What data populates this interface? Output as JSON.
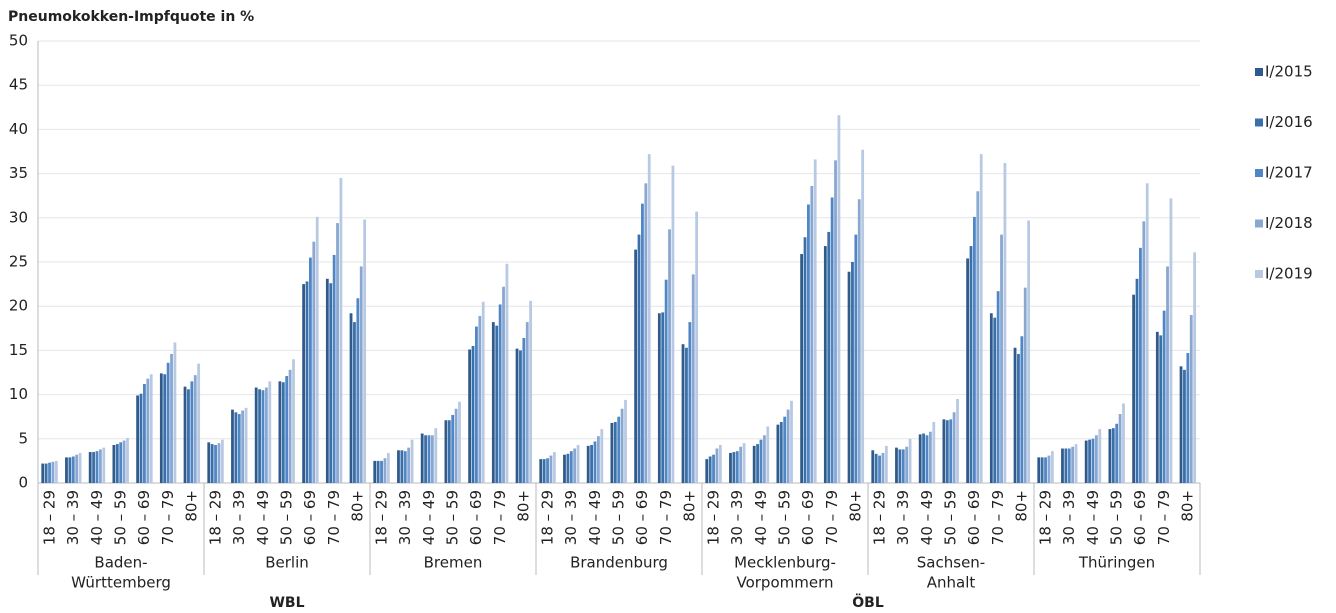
{
  "chart_data": {
    "type": "bar",
    "title": "Pneumokokken-Impfquote in %",
    "ylim": [
      0,
      50
    ],
    "yticks": [
      0,
      5,
      10,
      15,
      20,
      25,
      30,
      35,
      40,
      45,
      50
    ],
    "grid": true,
    "legend": "right",
    "categories": [
      "18 – 29",
      "30 – 39",
      "40 – 49",
      "50 – 59",
      "60 – 69",
      "70 – 79",
      "80+",
      "18 – 29",
      "30 – 39",
      "40 – 49",
      "50 – 59",
      "60 – 69",
      "70 – 79",
      "80+",
      "18 – 29",
      "30 – 39",
      "40 – 49",
      "50 – 59",
      "60 – 69",
      "70 – 79",
      "80+",
      "18 – 29",
      "30 – 39",
      "40 – 49",
      "50 – 59",
      "60 – 69",
      "70 – 79",
      "80+",
      "18 – 29",
      "30 – 39",
      "40 – 49",
      "50 – 59",
      "60 – 69",
      "70 – 79",
      "80+",
      "18 – 29",
      "30 – 39",
      "40 – 49",
      "50 – 59",
      "60 – 69",
      "70 – 79",
      "80+",
      "18 – 29",
      "30 – 39",
      "40 – 49",
      "50 – 59",
      "60 – 69",
      "70 – 79",
      "80+"
    ],
    "groups": [
      [
        "Baden-",
        "Württemberg"
      ],
      [
        "Berlin"
      ],
      [
        "Bremen"
      ],
      [
        "Brandenburg"
      ],
      [
        "Mecklenburg-",
        "Vorpommern"
      ],
      [
        "Sachsen-",
        "Anhalt"
      ],
      [
        "Thüringen"
      ]
    ],
    "regions": [
      "WBL",
      "ÖBL"
    ],
    "series": [
      {
        "name": "I/2015",
        "color": "#2f5b8c",
        "values": [
          2.2,
          2.9,
          3.5,
          4.3,
          9.9,
          12.4,
          10.9,
          4.6,
          8.3,
          10.8,
          11.5,
          22.5,
          23.1,
          19.2,
          2.5,
          3.7,
          5.6,
          7.1,
          15.1,
          18.2,
          15.2,
          2.7,
          3.2,
          4.2,
          6.8,
          26.4,
          19.2,
          15.7,
          2.7,
          3.4,
          4.2,
          6.6,
          25.9,
          26.8,
          23.9,
          3.7,
          4.0,
          5.5,
          7.2,
          25.4,
          19.2,
          15.3,
          2.9,
          3.9,
          4.8,
          6.1,
          21.3,
          17.1,
          13.2
        ]
      },
      {
        "name": "I/2016",
        "color": "#3b6fa8",
        "values": [
          2.2,
          2.9,
          3.5,
          4.4,
          10.1,
          12.3,
          10.6,
          4.4,
          8.0,
          10.6,
          11.4,
          22.8,
          22.6,
          18.2,
          2.5,
          3.7,
          5.4,
          7.1,
          15.5,
          17.8,
          15.0,
          2.7,
          3.3,
          4.3,
          6.9,
          28.1,
          19.3,
          15.3,
          3.0,
          3.5,
          4.4,
          6.9,
          27.8,
          28.4,
          25.0,
          3.3,
          3.8,
          5.6,
          7.1,
          26.8,
          18.7,
          14.6,
          2.9,
          3.9,
          4.9,
          6.2,
          23.1,
          16.7,
          12.8
        ]
      },
      {
        "name": "I/2017",
        "color": "#4f86c6",
        "values": [
          2.3,
          3.0,
          3.6,
          4.6,
          11.2,
          13.6,
          11.5,
          4.3,
          7.8,
          10.5,
          12.1,
          25.5,
          25.8,
          20.9,
          2.5,
          3.6,
          5.4,
          7.7,
          17.7,
          20.2,
          16.4,
          2.8,
          3.6,
          4.7,
          7.5,
          31.6,
          23.0,
          18.2,
          3.2,
          3.6,
          4.9,
          7.5,
          31.5,
          32.3,
          28.1,
          3.1,
          3.8,
          5.4,
          7.2,
          30.1,
          21.7,
          16.6,
          2.9,
          3.9,
          5.0,
          6.7,
          26.6,
          19.5,
          14.7
        ]
      },
      {
        "name": "I/2018",
        "color": "#89a7d0",
        "values": [
          2.4,
          3.2,
          3.8,
          4.8,
          11.8,
          14.6,
          12.2,
          4.5,
          8.2,
          10.8,
          12.8,
          27.3,
          29.4,
          24.5,
          2.8,
          4.0,
          5.4,
          8.4,
          18.9,
          22.2,
          18.2,
          3.1,
          3.9,
          5.3,
          8.4,
          33.9,
          28.7,
          23.6,
          3.9,
          4.1,
          5.4,
          8.3,
          33.6,
          36.5,
          32.1,
          3.4,
          4.1,
          5.8,
          8.0,
          33.0,
          28.1,
          22.1,
          3.1,
          4.1,
          5.4,
          7.8,
          29.6,
          24.5,
          19.0
        ]
      },
      {
        "name": "I/2019",
        "color": "#b8c9e3",
        "values": [
          2.5,
          3.4,
          4.0,
          5.1,
          12.3,
          15.9,
          13.5,
          4.9,
          8.5,
          11.5,
          14.0,
          30.1,
          34.5,
          29.8,
          3.4,
          4.9,
          6.2,
          9.2,
          20.5,
          24.8,
          20.6,
          3.5,
          4.3,
          6.1,
          9.4,
          37.2,
          35.9,
          30.7,
          4.3,
          4.5,
          6.4,
          9.3,
          36.6,
          41.6,
          37.7,
          4.2,
          5.0,
          6.9,
          9.5,
          37.2,
          36.2,
          29.7,
          3.6,
          4.4,
          6.1,
          9.0,
          33.9,
          32.2,
          26.1
        ]
      }
    ]
  }
}
